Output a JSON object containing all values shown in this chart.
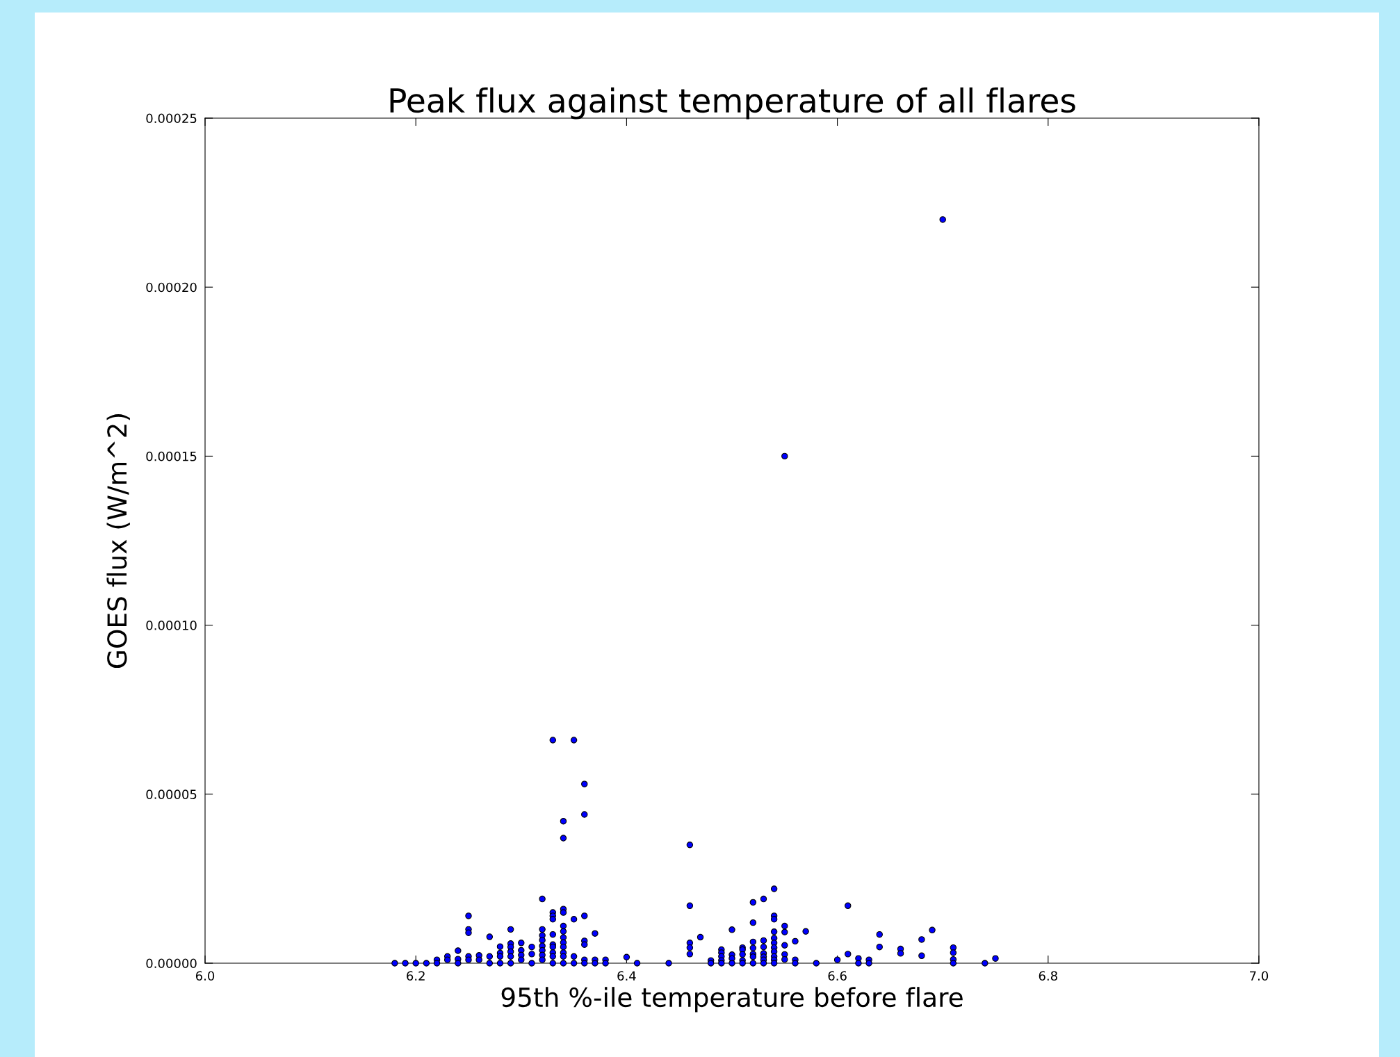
{
  "chart_data": {
    "type": "scatter",
    "title": "Peak flux against temperature of all flares",
    "xlabel": "95th %-ile temperature before flare",
    "ylabel": "GOES flux (W/m^2)",
    "xlim": [
      6.0,
      7.0
    ],
    "ylim": [
      0,
      0.00025
    ],
    "xticks": [
      {
        "value": 6.0,
        "label": "6.0"
      },
      {
        "value": 6.2,
        "label": "6.2"
      },
      {
        "value": 6.4,
        "label": "6.4"
      },
      {
        "value": 6.6,
        "label": "6.6"
      },
      {
        "value": 6.8,
        "label": "6.8"
      },
      {
        "value": 7.0,
        "label": "7.0"
      }
    ],
    "yticks": [
      {
        "value": 0,
        "label": "0.00000"
      },
      {
        "value": 5e-05,
        "label": "0.00005"
      },
      {
        "value": 0.0001,
        "label": "0.00010"
      },
      {
        "value": 0.00015,
        "label": "0.00015"
      },
      {
        "value": 0.0002,
        "label": "0.00020"
      },
      {
        "value": 0.00025,
        "label": "0.00025"
      }
    ],
    "grid": false,
    "marker": "circle",
    "series": [
      {
        "color": "#0000ff",
        "x": [
          6.18,
          6.19,
          6.2,
          6.21,
          6.22,
          6.22,
          6.23,
          6.23,
          6.24,
          6.24,
          6.24,
          6.25,
          6.25,
          6.25,
          6.25,
          6.25,
          6.26,
          6.26,
          6.27,
          6.27,
          6.27,
          6.28,
          6.28,
          6.28,
          6.28,
          6.29,
          6.29,
          6.29,
          6.29,
          6.29,
          6.29,
          6.3,
          6.3,
          6.3,
          6.3,
          6.31,
          6.31,
          6.31,
          6.32,
          6.32,
          6.32,
          6.32,
          6.32,
          6.32,
          6.32,
          6.32,
          6.33,
          6.33,
          6.33,
          6.33,
          6.33,
          6.33,
          6.33,
          6.33,
          6.33,
          6.33,
          6.34,
          6.34,
          6.34,
          6.34,
          6.34,
          6.34,
          6.34,
          6.34,
          6.34,
          6.34,
          6.34,
          6.34,
          6.35,
          6.35,
          6.35,
          6.35,
          6.36,
          6.36,
          6.36,
          6.36,
          6.36,
          6.36,
          6.36,
          6.37,
          6.37,
          6.37,
          6.38,
          6.38,
          6.4,
          6.41,
          6.44,
          6.46,
          6.46,
          6.46,
          6.46,
          6.46,
          6.47,
          6.48,
          6.48,
          6.49,
          6.49,
          6.49,
          6.49,
          6.49,
          6.5,
          6.5,
          6.5,
          6.5,
          6.51,
          6.51,
          6.51,
          6.51,
          6.51,
          6.52,
          6.52,
          6.52,
          6.52,
          6.52,
          6.52,
          6.52,
          6.53,
          6.53,
          6.53,
          6.53,
          6.53,
          6.53,
          6.53,
          6.54,
          6.54,
          6.54,
          6.54,
          6.54,
          6.54,
          6.54,
          6.54,
          6.54,
          6.54,
          6.54,
          6.55,
          6.55,
          6.55,
          6.55,
          6.55,
          6.55,
          6.56,
          6.56,
          6.56,
          6.57,
          6.58,
          6.6,
          6.61,
          6.61,
          6.62,
          6.62,
          6.63,
          6.63,
          6.64,
          6.64,
          6.66,
          6.66,
          6.68,
          6.68,
          6.69,
          6.7,
          6.71,
          6.71,
          6.71,
          6.71,
          6.74,
          6.75
        ],
        "values": [
          0,
          0,
          0,
          0,
          1e-06,
          0,
          2e-06,
          1e-06,
          3.7e-06,
          1.2e-06,
          0,
          1.4e-05,
          1e-05,
          9e-06,
          2e-06,
          1e-06,
          2.3e-06,
          1e-06,
          7.8e-06,
          2e-06,
          0,
          4.9e-06,
          3e-06,
          2e-06,
          0,
          1e-05,
          5.8e-06,
          4.8e-06,
          3.4e-06,
          2e-06,
          0,
          6e-06,
          3.8e-06,
          2.4e-06,
          1e-06,
          4.8e-06,
          2.7e-06,
          0,
          1.9e-05,
          1e-05,
          8.2e-06,
          6.8e-06,
          5.1e-06,
          3.8e-06,
          2.4e-06,
          1e-06,
          6.6e-05,
          1.5e-05,
          1.4e-05,
          1.3e-05,
          8.5e-06,
          5.5e-06,
          4.8e-06,
          3.1e-06,
          2e-06,
          0,
          4.2e-05,
          3.7e-05,
          1.6e-05,
          1.5e-05,
          1.1e-05,
          9.4e-06,
          7.6e-06,
          6.1e-06,
          4.8e-06,
          3.1e-06,
          2e-06,
          0,
          6.6e-05,
          1.3e-05,
          2e-06,
          0,
          5.3e-05,
          4.4e-05,
          1.4e-05,
          6.6e-06,
          5.5e-06,
          1e-06,
          0,
          8.8e-06,
          1e-06,
          0,
          1e-06,
          0,
          1.8e-06,
          0,
          0,
          3.5e-05,
          1.7e-05,
          6e-06,
          4.6e-06,
          2.7e-06,
          7.7e-06,
          8e-07,
          0,
          4e-06,
          3.1e-06,
          2e-06,
          8e-07,
          0,
          9.9e-06,
          2.5e-06,
          1.4e-06,
          0,
          4.6e-06,
          4e-06,
          2.6e-06,
          8e-07,
          0,
          1.8e-05,
          1.2e-05,
          6.3e-06,
          4.5e-06,
          2.7e-06,
          1.9e-06,
          0,
          1.9e-05,
          6.7e-06,
          4.8e-06,
          2.9e-06,
          1.9e-06,
          1e-06,
          0,
          2.2e-05,
          1.4e-05,
          1.3e-05,
          9.3e-06,
          7.4e-06,
          6e-06,
          4.6e-06,
          3.4e-06,
          2e-06,
          1e-06,
          0,
          0.00015,
          1.1e-05,
          9.2e-06,
          5.3e-06,
          2.6e-06,
          1.1e-06,
          6.5e-06,
          1e-06,
          0,
          9.4e-06,
          0,
          1e-06,
          1.7e-05,
          2.7e-06,
          1.4e-06,
          0,
          1e-06,
          0,
          8.5e-06,
          4.8e-06,
          4.2e-06,
          2.9e-06,
          7e-06,
          2.2e-06,
          9.8e-06,
          0.00022,
          4.6e-06,
          3.1e-06,
          1.1e-06,
          0,
          0,
          1.4e-06
        ]
      }
    ]
  }
}
